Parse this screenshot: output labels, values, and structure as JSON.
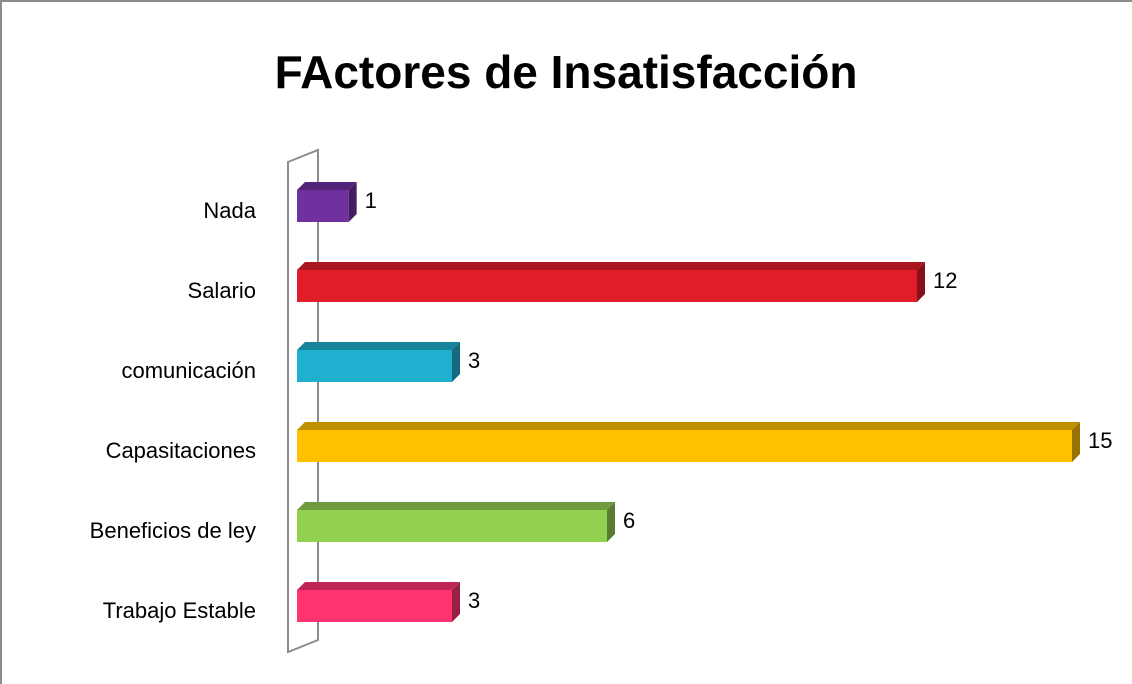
{
  "chart_data": {
    "type": "bar",
    "orientation": "horizontal",
    "title": "FActores de Insatisfacción",
    "categories": [
      "Nada",
      "Salario",
      "comunicación",
      "Capasitaciones",
      "Beneficios de ley",
      "Trabajo Estable"
    ],
    "values": [
      1,
      12,
      3,
      15,
      6,
      3
    ],
    "colors": [
      "#7030a0",
      "#e21d2a",
      "#1fb0cf",
      "#ffc000",
      "#92d050",
      "#ff3370"
    ]
  }
}
